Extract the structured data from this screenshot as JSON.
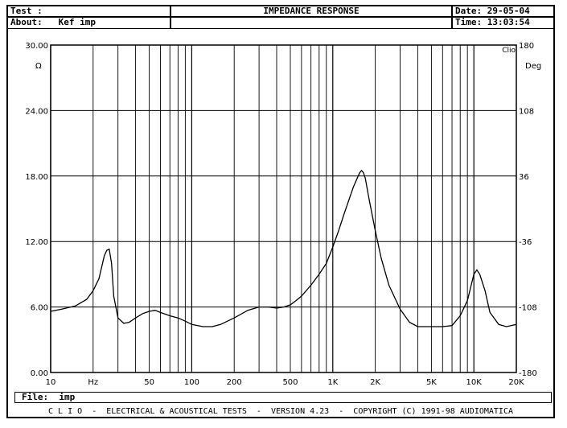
{
  "header": {
    "test_label": "Test :",
    "about_label": "About:",
    "about_value": "Kef imp",
    "title": "IMPEDANCE RESPONSE",
    "date_label": "Date:",
    "date_value": "29-05-04",
    "time_label": "Time:",
    "time_value": "13:03:54"
  },
  "file": {
    "label": "File:",
    "value": "imp"
  },
  "footer": {
    "text": "C L I O  -  ELECTRICAL & ACOUSTICAL TESTS  -  VERSION 4.23  -  COPYRIGHT (C) 1991-98 AUDIOMATICA"
  },
  "chart_data": {
    "type": "line",
    "title": "IMPEDANCE RESPONSE",
    "xscale": "log",
    "xlim": [
      10,
      20000
    ],
    "ylim": [
      0,
      30
    ],
    "y2lim": [
      -180,
      180
    ],
    "xlabel_unit": "Hz",
    "ylabel_unit": "Ω",
    "y2label_unit": "Deg",
    "brand_tag": "Clio",
    "grid": true,
    "x_ticks": [
      {
        "value": 10,
        "label": "10"
      },
      {
        "value": 20,
        "label": "Hz"
      },
      {
        "value": 50,
        "label": "50"
      },
      {
        "value": 100,
        "label": "100"
      },
      {
        "value": 200,
        "label": "200"
      },
      {
        "value": 500,
        "label": "500"
      },
      {
        "value": 1000,
        "label": "1K"
      },
      {
        "value": 2000,
        "label": "2K"
      },
      {
        "value": 5000,
        "label": "5K"
      },
      {
        "value": 10000,
        "label": "10K"
      },
      {
        "value": 20000,
        "label": "20K"
      }
    ],
    "y_ticks": [
      {
        "value": 0,
        "label": "0.00"
      },
      {
        "value": 6,
        "label": "6.00"
      },
      {
        "value": 12,
        "label": "12.00"
      },
      {
        "value": 18,
        "label": "18.00"
      },
      {
        "value": 24,
        "label": "24.00"
      },
      {
        "value": 30,
        "label": "30.00"
      }
    ],
    "y2_ticks": [
      {
        "value": -180,
        "label": "-180"
      },
      {
        "value": -108,
        "label": "-108"
      },
      {
        "value": -36,
        "label": "-36"
      },
      {
        "value": 36,
        "label": "36"
      },
      {
        "value": 108,
        "label": "108"
      },
      {
        "value": 180,
        "label": "180"
      }
    ],
    "series": [
      {
        "color": "#000000",
        "x": [
          10,
          12,
          15,
          18,
          20,
          22,
          24,
          25,
          26,
          27,
          28,
          30,
          33,
          36,
          40,
          45,
          50,
          55,
          60,
          70,
          80,
          90,
          100,
          120,
          140,
          160,
          200,
          250,
          300,
          350,
          400,
          450,
          500,
          550,
          600,
          700,
          800,
          900,
          1000,
          1100,
          1200,
          1300,
          1400,
          1500,
          1550,
          1600,
          1650,
          1700,
          1800,
          2000,
          2200,
          2500,
          3000,
          3500,
          4000,
          5000,
          6000,
          7000,
          8000,
          9000,
          10000,
          10500,
          11000,
          12000,
          13000,
          15000,
          17000,
          20000
        ],
        "y": [
          5.6,
          5.8,
          6.1,
          6.7,
          7.5,
          8.6,
          10.7,
          11.2,
          11.3,
          10.0,
          7.0,
          5.0,
          4.5,
          4.6,
          5.0,
          5.4,
          5.6,
          5.7,
          5.5,
          5.2,
          5.0,
          4.7,
          4.4,
          4.2,
          4.2,
          4.4,
          5.0,
          5.7,
          6.0,
          6.0,
          5.9,
          6.0,
          6.2,
          6.6,
          7.0,
          8.0,
          9.0,
          10.0,
          11.5,
          13.0,
          14.5,
          15.8,
          17.0,
          17.9,
          18.3,
          18.5,
          18.3,
          17.8,
          16.0,
          13.0,
          10.5,
          8.0,
          5.8,
          4.6,
          4.2,
          4.2,
          4.2,
          4.3,
          5.2,
          6.6,
          9.0,
          9.4,
          9.0,
          7.5,
          5.5,
          4.4,
          4.2,
          4.4
        ]
      }
    ]
  }
}
